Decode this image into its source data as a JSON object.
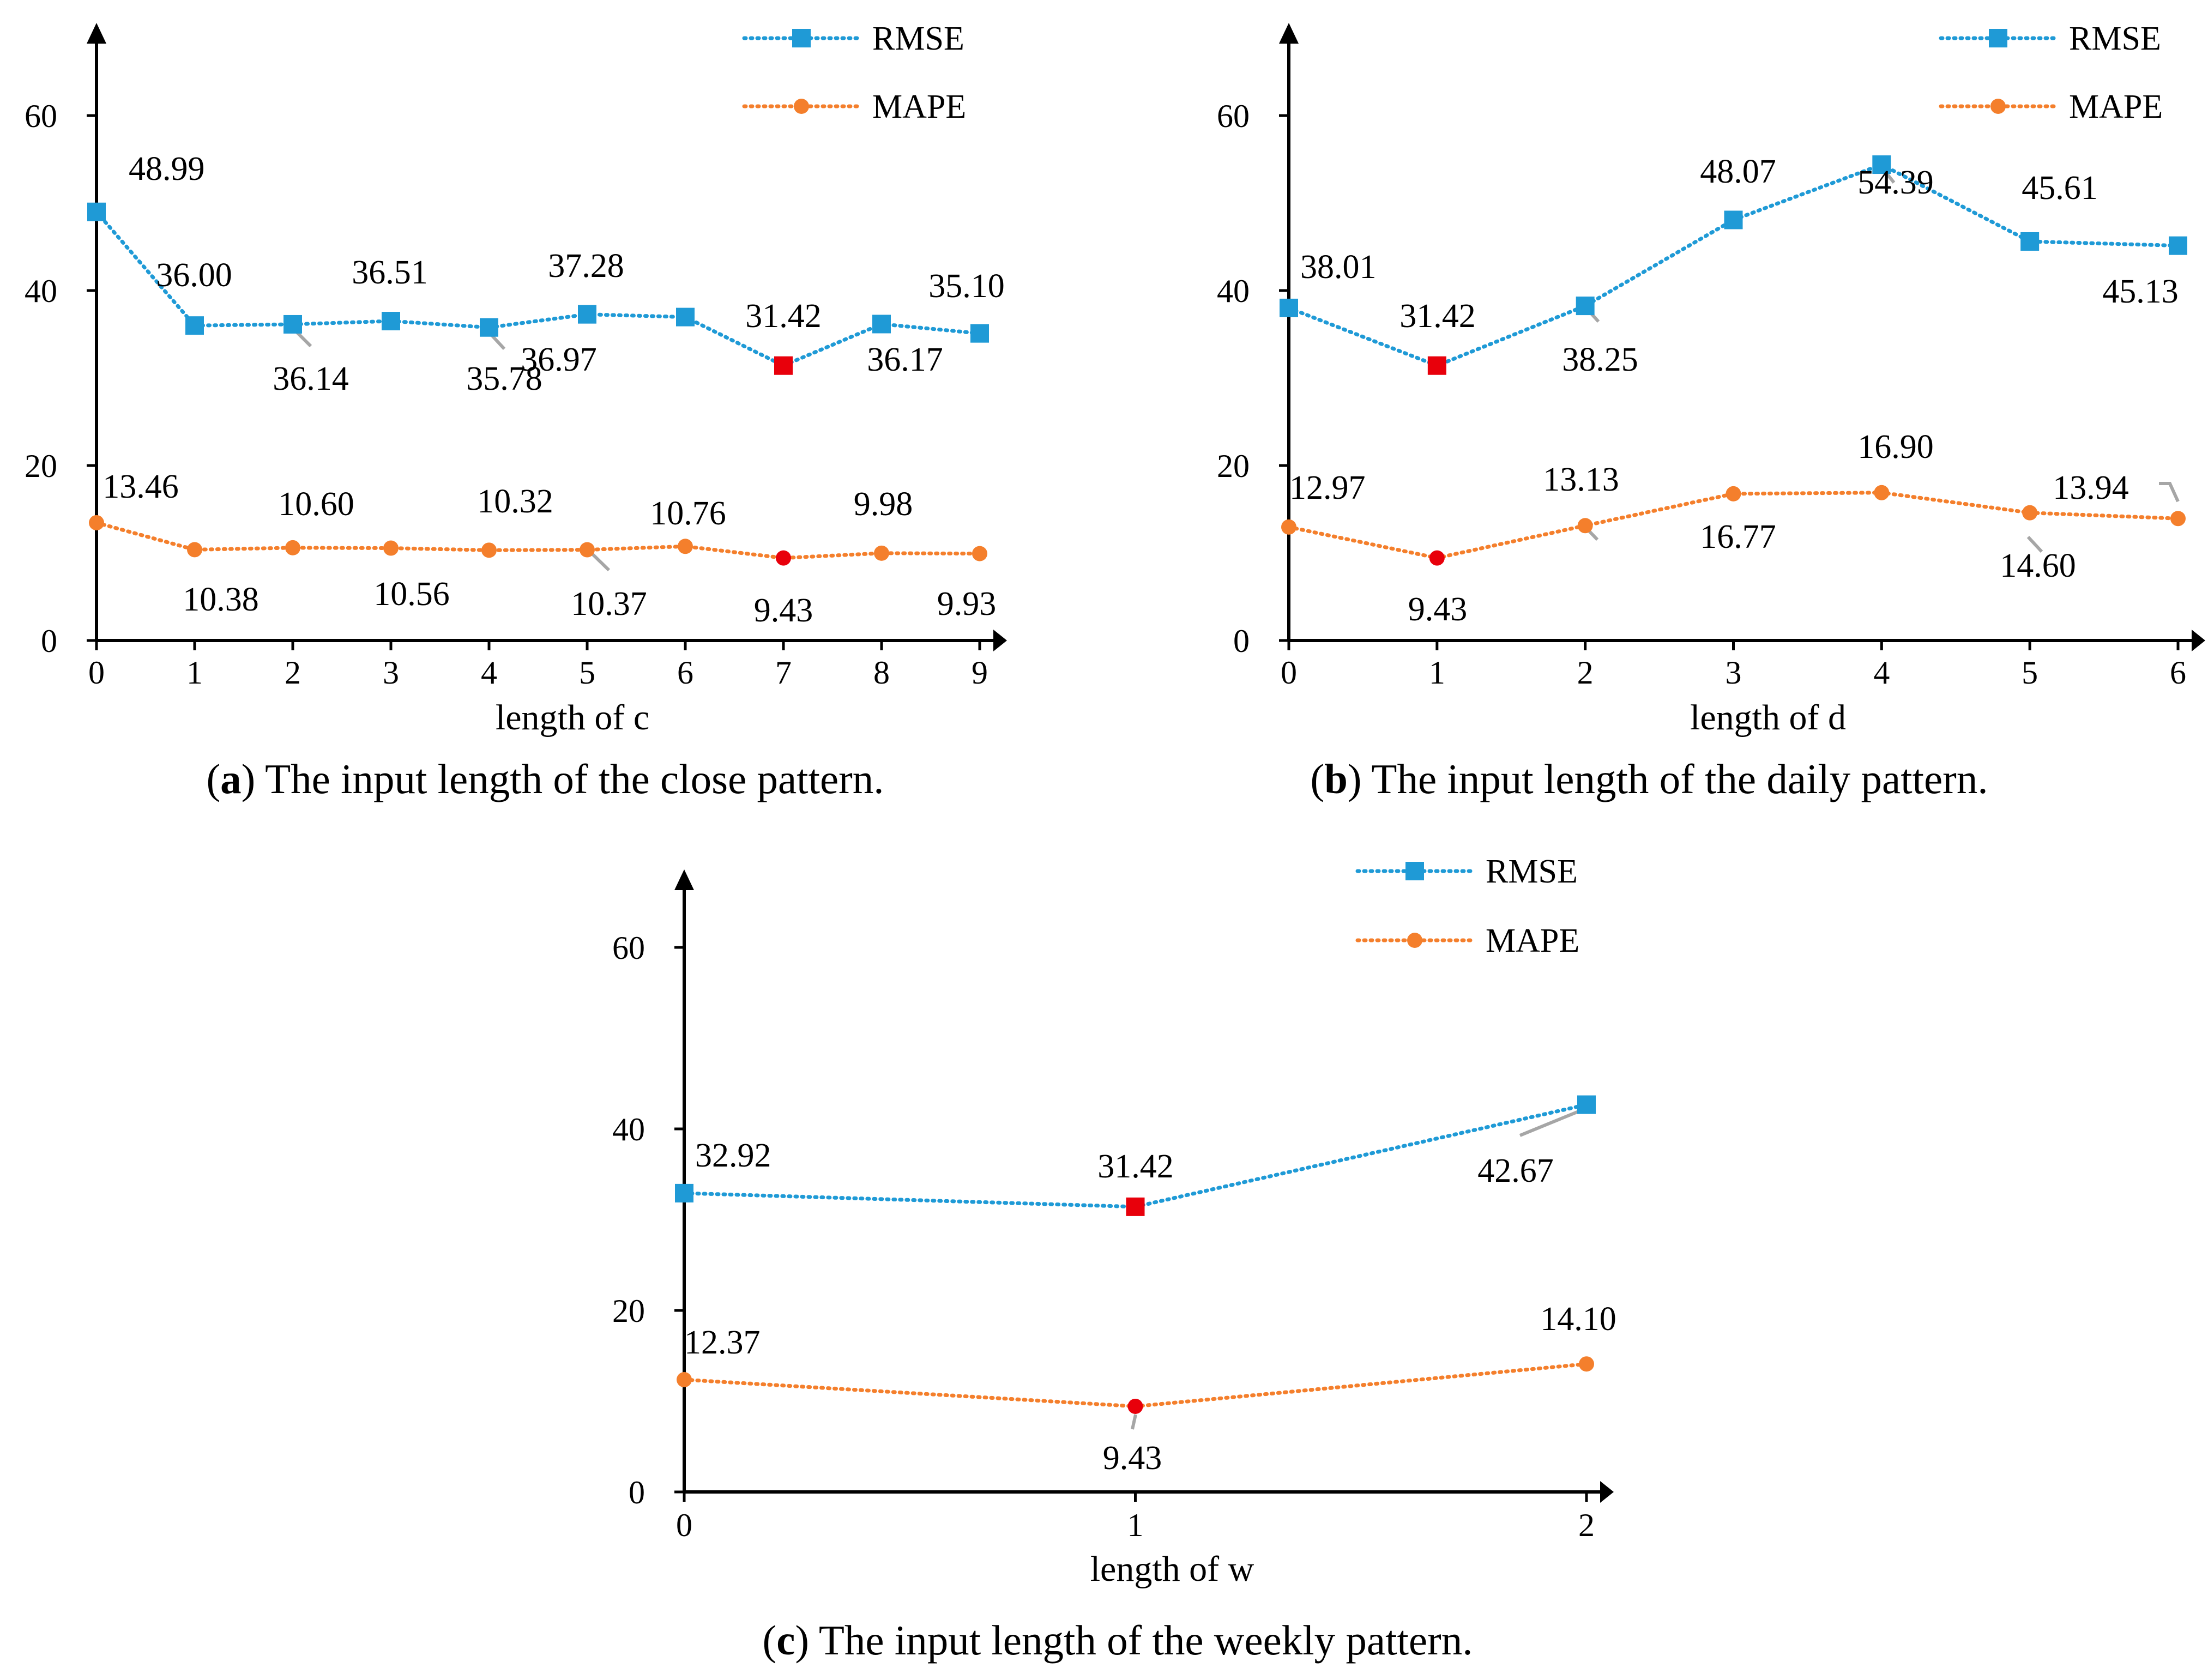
{
  "colors": {
    "rmse": "#1f9ad6",
    "mape": "#f47f2c",
    "highlight": "#e8000b",
    "leader": "#a6a6a6",
    "axis": "#000000"
  },
  "legend": {
    "rmse_label": "RMSE",
    "mape_label": "MAPE"
  },
  "captions": {
    "a_letter": "a",
    "a_text": "The input length of the close pattern.",
    "b_letter": "b",
    "b_text": "The input length of the daily pattern.",
    "c_letter": "c",
    "c_text": "The input length of the weekly pattern."
  },
  "chart_data": [
    {
      "id": "a",
      "type": "line",
      "xlabel": "length of c",
      "ylabel": "",
      "categories": [
        "0",
        "1",
        "2",
        "3",
        "4",
        "5",
        "6",
        "7",
        "8",
        "9"
      ],
      "yticks": [
        "0",
        "20",
        "40",
        "60"
      ],
      "ylim": [
        0,
        70
      ],
      "legend_position": "top-right",
      "series": [
        {
          "name": "RMSE",
          "values": [
            48.99,
            36.0,
            36.14,
            36.51,
            35.78,
            37.28,
            36.97,
            31.42,
            36.17,
            35.1
          ],
          "labels": [
            "48.99",
            "36.00",
            "36.14",
            "36.51",
            "35.78",
            "37.28",
            "36.97",
            "31.42",
            "36.17",
            "35.10"
          ],
          "highlight_index": 7
        },
        {
          "name": "MAPE",
          "values": [
            13.46,
            10.38,
            10.6,
            10.56,
            10.32,
            10.37,
            10.76,
            9.43,
            9.98,
            9.93
          ],
          "labels": [
            "13.46",
            "10.38",
            "10.60",
            "10.56",
            "10.32",
            "10.37",
            "10.76",
            "9.43",
            "9.98",
            "9.93"
          ],
          "highlight_index": 7
        }
      ]
    },
    {
      "id": "b",
      "type": "line",
      "xlabel": "length of d",
      "ylabel": "",
      "categories": [
        "0",
        "1",
        "2",
        "3",
        "4",
        "5",
        "6"
      ],
      "yticks": [
        "0",
        "20",
        "40",
        "60"
      ],
      "ylim": [
        0,
        70
      ],
      "legend_position": "top-right",
      "series": [
        {
          "name": "RMSE",
          "values": [
            38.01,
            31.42,
            38.25,
            48.07,
            54.39,
            45.61,
            45.13
          ],
          "labels": [
            "38.01",
            "31.42",
            "38.25",
            "48.07",
            "54.39",
            "45.61",
            "45.13"
          ],
          "highlight_index": 1
        },
        {
          "name": "MAPE",
          "values": [
            12.97,
            9.43,
            13.13,
            16.77,
            16.9,
            14.6,
            13.94
          ],
          "labels": [
            "12.97",
            "9.43",
            "13.13",
            "16.77",
            "16.90",
            "14.60",
            "13.94"
          ],
          "highlight_index": 1
        }
      ]
    },
    {
      "id": "c",
      "type": "line",
      "xlabel": "length of w",
      "ylabel": "",
      "categories": [
        "0",
        "1",
        "2"
      ],
      "yticks": [
        "0",
        "20",
        "40",
        "60"
      ],
      "ylim": [
        0,
        70
      ],
      "legend_position": "top-right",
      "series": [
        {
          "name": "RMSE",
          "values": [
            32.92,
            31.42,
            42.67
          ],
          "labels": [
            "32.92",
            "31.42",
            "42.67"
          ],
          "highlight_index": 1
        },
        {
          "name": "MAPE",
          "values": [
            12.37,
            9.43,
            14.1
          ],
          "labels": [
            "12.37",
            "9.43",
            "14.10"
          ],
          "highlight_index": 1
        }
      ]
    }
  ]
}
